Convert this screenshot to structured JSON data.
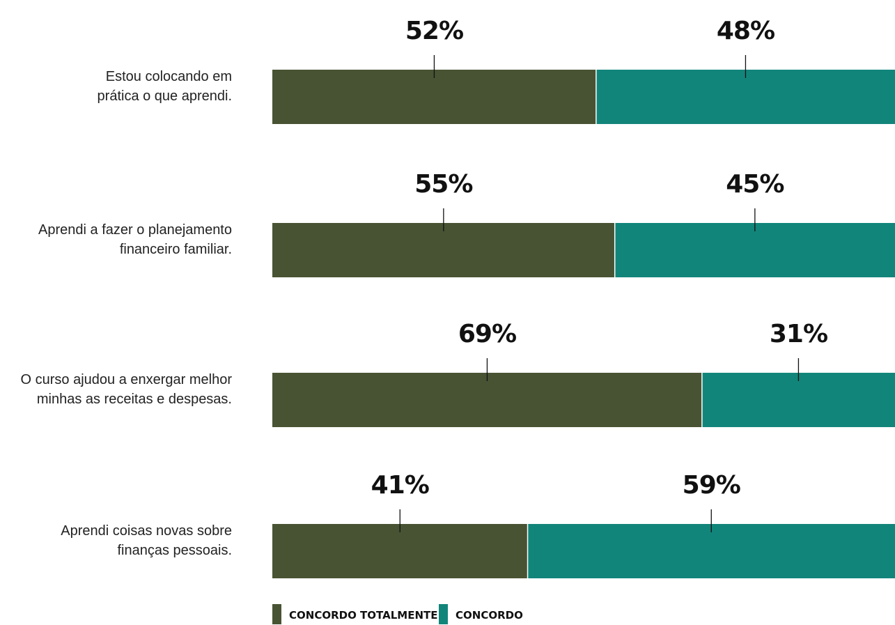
{
  "chart_data": {
    "type": "bar",
    "orientation": "horizontal",
    "stacked": "100%",
    "categories": [
      [
        "Estou colocando em",
        "prática o que aprendi."
      ],
      [
        "Aprendi a fazer o planejamento",
        "financeiro familiar."
      ],
      [
        "O curso ajudou a enxergar melhor",
        "minhas as receitas e despesas."
      ],
      [
        "Aprendi coisas novas sobre",
        "finanças pessoais."
      ]
    ],
    "series": [
      {
        "name": "CONCORDO TOTALMENTE",
        "color": "#485333",
        "values": [
          52,
          55,
          69,
          41
        ],
        "labels": [
          "52%",
          "55%",
          "69%",
          "41%"
        ]
      },
      {
        "name": "CONCORDO",
        "color": "#12857a",
        "values": [
          48,
          45,
          31,
          59
        ],
        "labels": [
          "48%",
          "45%",
          "31%",
          "59%"
        ]
      }
    ],
    "xlim": [
      0,
      100
    ],
    "grid": false,
    "legend_position": "bottom-left"
  }
}
